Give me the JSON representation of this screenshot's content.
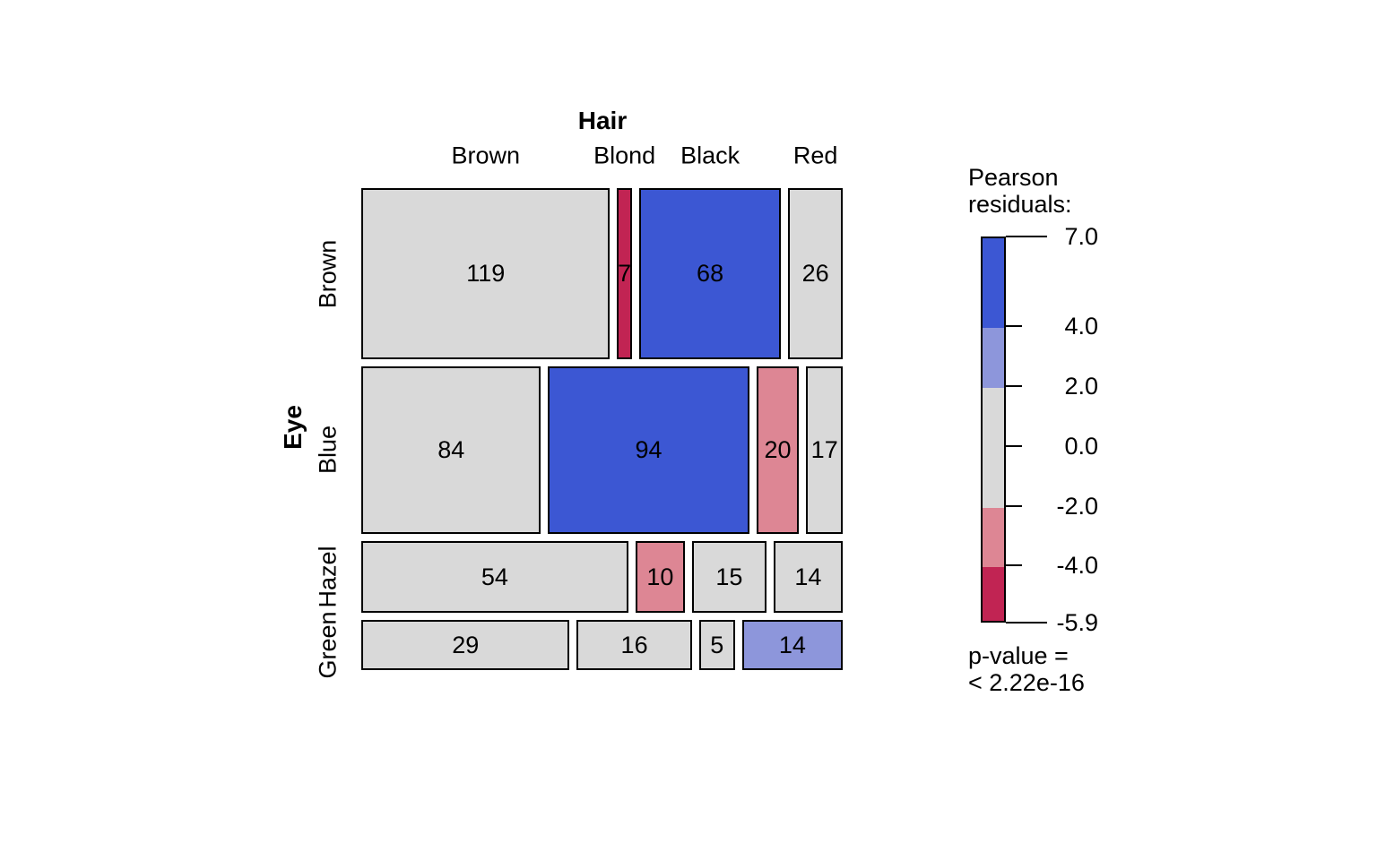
{
  "chart_data": {
    "type": "mosaic",
    "title": "Hair",
    "y_title": "Eye",
    "columns": [
      "Brown",
      "Blond",
      "Black",
      "Red"
    ],
    "rows": [
      "Brown",
      "Blue",
      "Hazel",
      "Green"
    ],
    "counts": [
      [
        119,
        7,
        68,
        26
      ],
      [
        84,
        94,
        20,
        17
      ],
      [
        54,
        10,
        15,
        14
      ],
      [
        29,
        16,
        5,
        14
      ]
    ],
    "residual_class": [
      [
        "none",
        "strong-neg",
        "strong-pos",
        "none"
      ],
      [
        "none",
        "strong-pos",
        "mild-neg",
        "none"
      ],
      [
        "none",
        "mild-neg",
        "none",
        "none"
      ],
      [
        "none",
        "none",
        "none",
        "mild-pos"
      ]
    ],
    "colors": {
      "none": "#D9D9D9",
      "strong-pos": "#3C57D3",
      "mild-pos": "#8D96DB",
      "mild-neg": "#DD8694",
      "strong-neg": "#C12453",
      "border": "#000000"
    },
    "legend": {
      "title_lines": [
        "Pearson",
        "residuals:"
      ],
      "tick_values": [
        7.0,
        4.0,
        2.0,
        0.0,
        -2.0,
        -4.0,
        -5.9
      ],
      "tick_labels": [
        "7.0",
        "4.0",
        "2.0",
        "0.0",
        "-2.0",
        "-4.0",
        "-5.9"
      ],
      "segments": [
        {
          "from": 7.0,
          "to": 4.0,
          "class": "strong-pos"
        },
        {
          "from": 4.0,
          "to": 2.0,
          "class": "mild-pos"
        },
        {
          "from": 2.0,
          "to": -2.0,
          "class": "none"
        },
        {
          "from": -2.0,
          "to": -4.0,
          "class": "mild-neg"
        },
        {
          "from": -4.0,
          "to": -5.9,
          "class": "strong-neg"
        }
      ],
      "p_value_lines": [
        "p-value =",
        "< 2.22e-16"
      ]
    }
  }
}
